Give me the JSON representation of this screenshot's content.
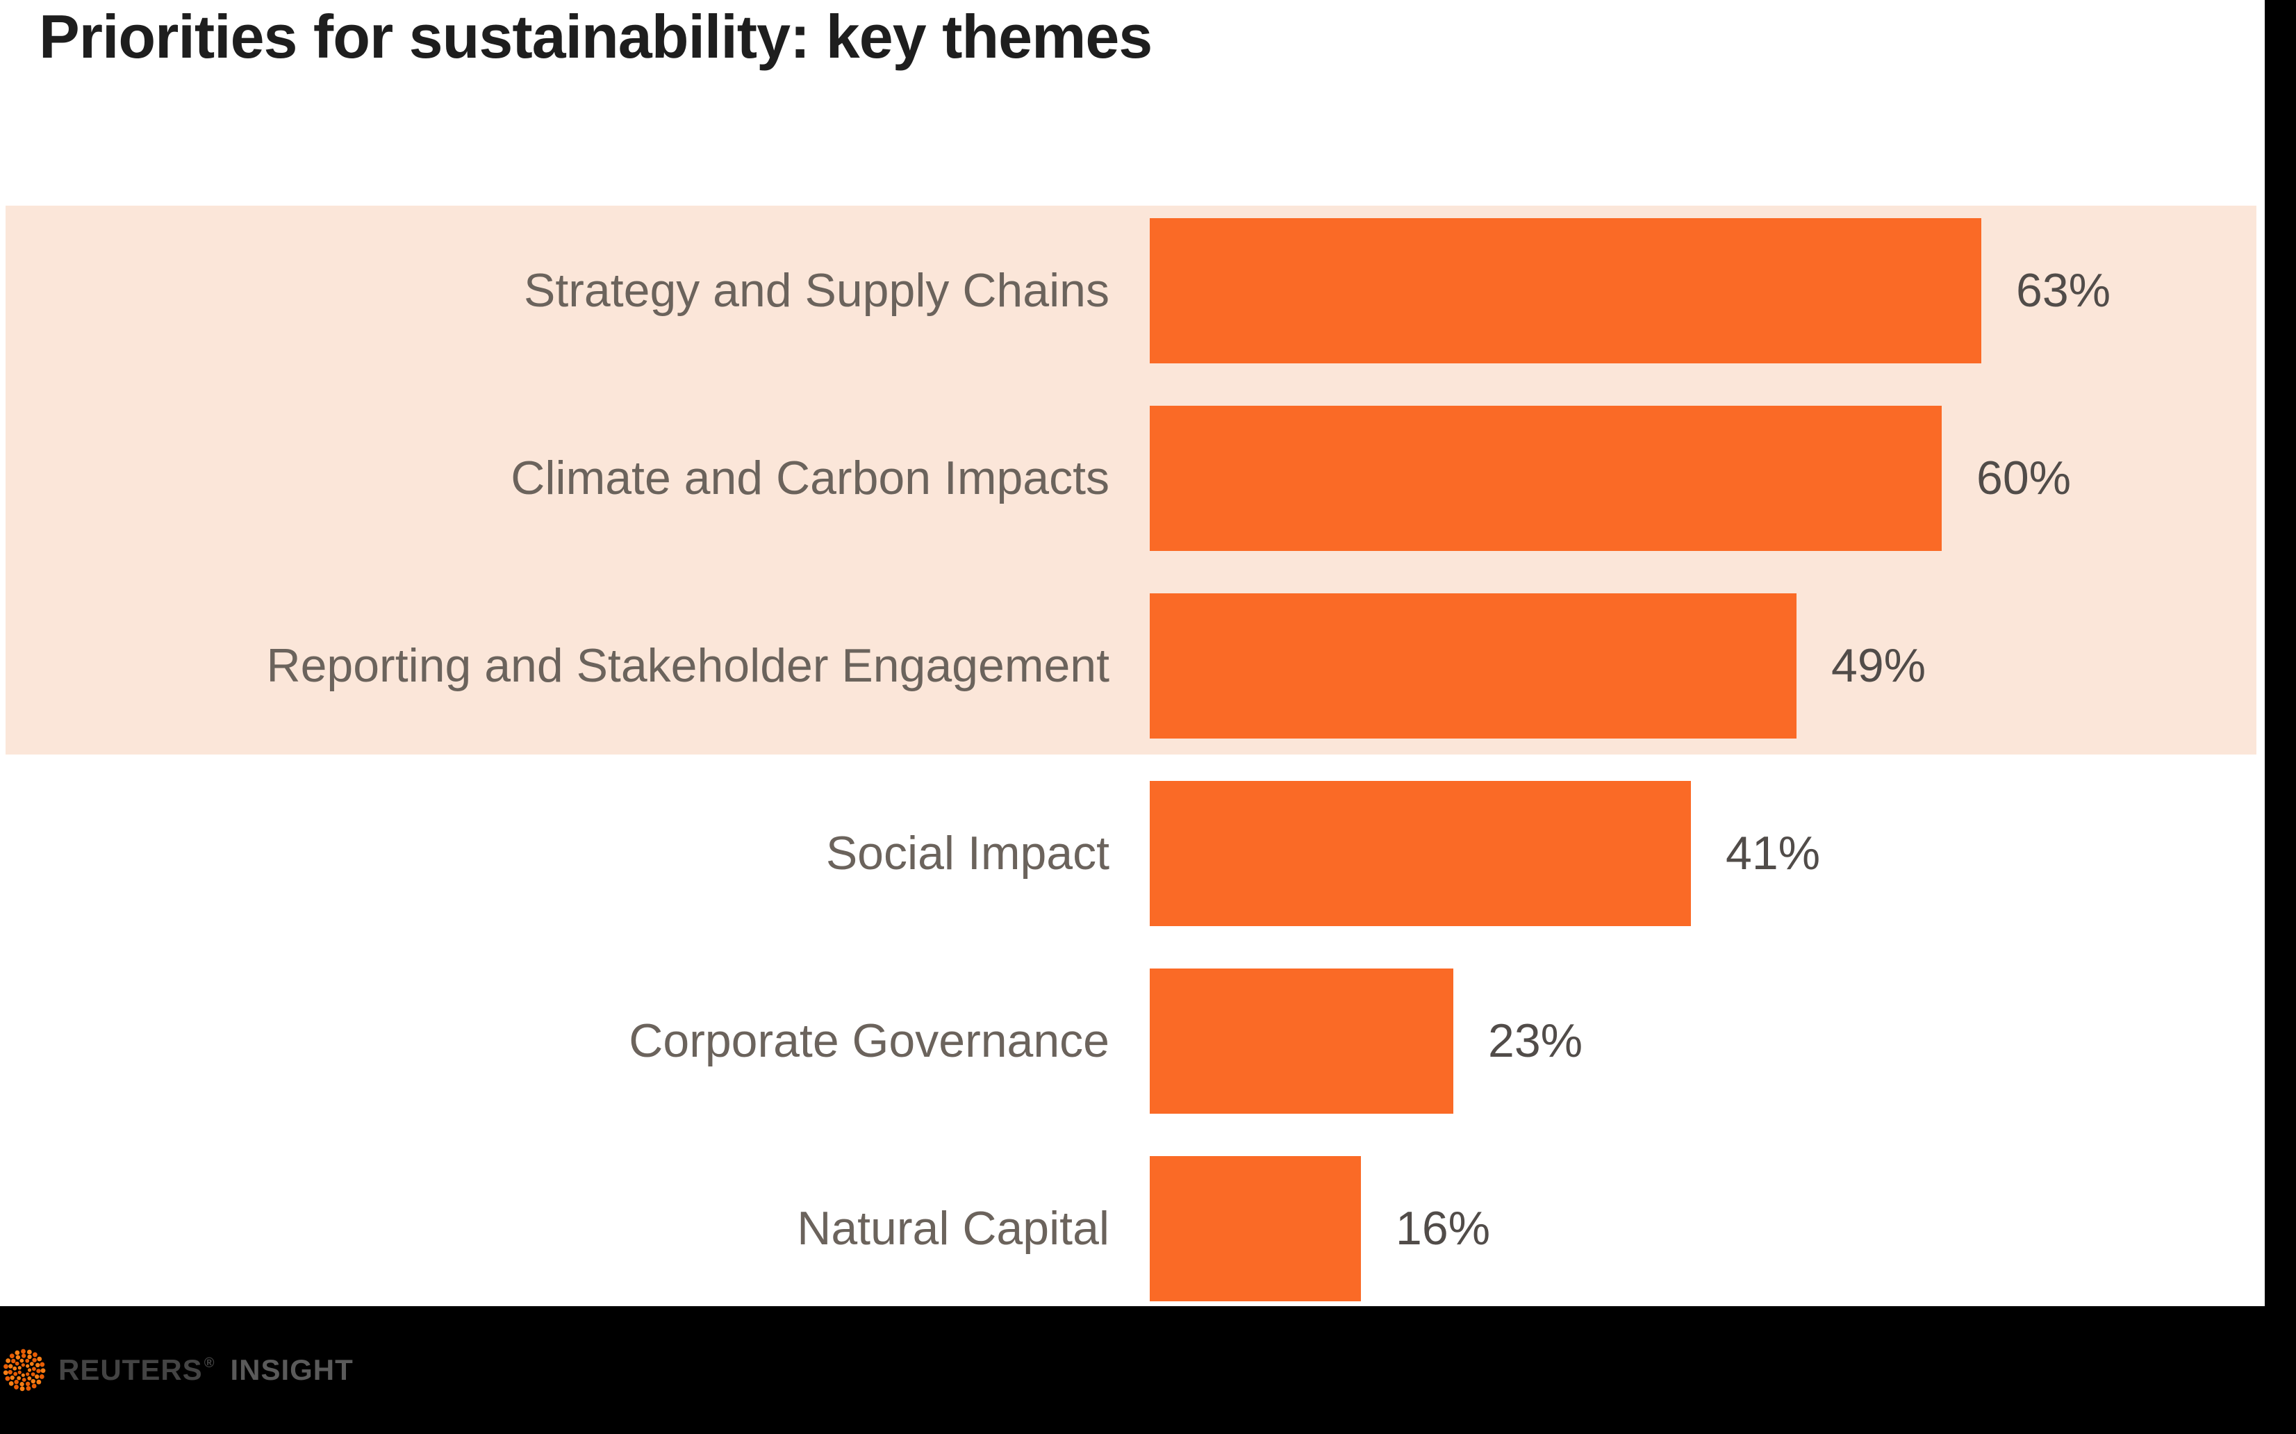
{
  "chart_data": {
    "type": "bar",
    "orientation": "horizontal",
    "title": "Priorities for sustainability: key themes",
    "categories": [
      "Strategy and Supply Chains",
      "Climate and Carbon Impacts",
      "Reporting and Stakeholder Engagement",
      "Social Impact",
      "Corporate Governance",
      "Natural Capital"
    ],
    "values": [
      63,
      60,
      49,
      41,
      23,
      16
    ],
    "value_labels": [
      "63%",
      "60%",
      "49%",
      "41%",
      "23%",
      "16%"
    ],
    "unit": "%",
    "xlim": [
      0,
      70
    ],
    "grid": false,
    "legend": false,
    "bar_color": "#FA6A26",
    "highlight_band_color": "#FBE6D9",
    "highlighted_categories": [
      "Strategy and Supply Chains",
      "Climate and Carbon Impacts",
      "Reporting and Stakeholder Engagement"
    ]
  },
  "footer": {
    "brand": "REUTERS",
    "reg_mark": "®",
    "product": "INSIGHT",
    "logo": "reuters-dotted-sphere",
    "logo_colors": [
      "#F87E14",
      "#E85D04"
    ]
  }
}
